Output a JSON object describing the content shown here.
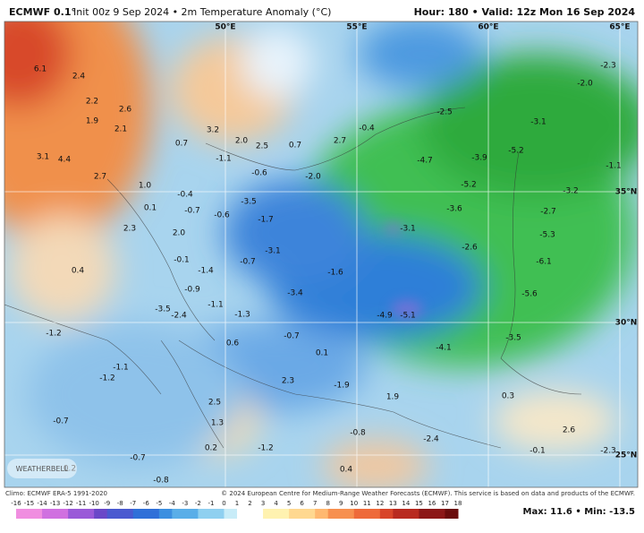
{
  "header": {
    "model": "ECMWF 0.1°",
    "description": "Init 00z 9 Sep 2024 • 2m Temperature Anomaly (°C)",
    "valid": "Hour: 180 • Valid: 12z Mon 16 Sep 2024"
  },
  "grid_labels": [
    "50°E",
    "55°E",
    "60°E",
    "65°E",
    "35°N",
    "30°N",
    "25°N"
  ],
  "map_labels": [
    "6.1",
    "2.4",
    "2.2",
    "2.6",
    "1.9",
    "2.1",
    "3.2",
    "2.0",
    "2.5",
    "0.7",
    "2.7",
    "-0.4",
    "-2.5",
    "-3.1",
    "-2.0",
    "-2.3",
    "3.1",
    "4.4",
    "0.7",
    "-1.1",
    "-0.6",
    "-2.0",
    "-4.7",
    "-3.9",
    "-5.2",
    "-1.1",
    "2.7",
    "1.0",
    "-0.4",
    "-3.5",
    "-5.2",
    "-3.2",
    "0.1",
    "-0.7",
    "-0.6",
    "-1.7",
    "-3.6",
    "-2.7",
    "2.3",
    "2.0",
    "-3.1",
    "-5.3",
    "-2.6",
    "-3.1",
    "-0.1",
    "-0.7",
    "-6.1",
    "-1.4",
    "0.4",
    "-1.6",
    "-0.9",
    "-3.4",
    "-5.6",
    "-1.1",
    "-1.3",
    "-3.5",
    "-2.4",
    "-4.9",
    "-5.1",
    "-1.2",
    "-0.7",
    "-3.5",
    "0.6",
    "-4.1",
    "0.1",
    "-1.1",
    "-1.2",
    "2.3",
    "-1.9",
    "0.3",
    "1.9",
    "2.5",
    "-0.7",
    "1.3",
    "2.6",
    "-0.8",
    "-2.4",
    "0.2",
    "-0.7",
    "-1.2",
    "-0.1",
    "-2.3",
    "0.2",
    "0.4",
    "-0.8"
  ],
  "logo": "WEATHERBELL",
  "footer": {
    "climo": "Climo: ECMWF ERA-5 1991-2020",
    "credit": "© 2024 European Centre for Medium-Range Weather Forecasts (ECMWF). This service is based on data and products of the ECMWF.",
    "extremes": "Max: 11.6 • Min: -13.5"
  },
  "colorbar_ticks": [
    "-16",
    "-15",
    "-14",
    "-13",
    "-12",
    "-11",
    "-10",
    "-9",
    "-8",
    "-7",
    "-6",
    "-5",
    "-4",
    "-3",
    "-2",
    "-1",
    "0",
    "1",
    "2",
    "3",
    "4",
    "5",
    "6",
    "7",
    "8",
    "9",
    "10",
    "11",
    "12",
    "13",
    "14",
    "15",
    "16",
    "17",
    "18"
  ]
}
